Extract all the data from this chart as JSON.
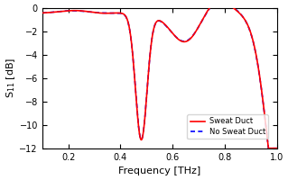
{
  "title": "",
  "xlabel": "Frequency [THz]",
  "ylabel": "S$_{11}$ [dB]",
  "xlim": [
    0.1,
    1.0
  ],
  "ylim": [
    -12,
    0
  ],
  "xticks": [
    0.2,
    0.4,
    0.6,
    0.8,
    1.0
  ],
  "yticks": [
    0,
    -2,
    -4,
    -6,
    -8,
    -10,
    -12
  ],
  "legend": [
    "Sweat Duct",
    "No Sweat Duct"
  ],
  "line1_color": "#ff0000",
  "line2_color": "#0000ff",
  "line_width": 1.2
}
